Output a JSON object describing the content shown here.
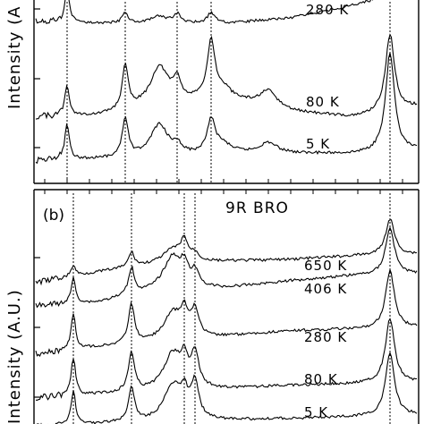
{
  "chart_data": [
    {
      "type": "line",
      "panel": "a",
      "panel_label": "",
      "title": "",
      "ylabel": "Intensity (A",
      "xlabel": "",
      "peak_positions": [
        75,
        140,
        198,
        236,
        436
      ],
      "minor_peaks": [
        178
      ],
      "series": [
        {
          "name": "280 K",
          "label": "280 K",
          "baseline": 30,
          "bg": [
            6,
            4,
            3,
            4,
            10,
            24,
            34
          ],
          "peaks": [
            36,
            12,
            10,
            12,
            8,
            0,
            0,
            48
          ]
        },
        {
          "name": "80 K",
          "label": "80 K",
          "baseline": 135,
          "bg": [
            4,
            6,
            18,
            24,
            10,
            4,
            16
          ],
          "peaks": [
            34,
            48,
            22,
            64,
            42,
            10,
            18,
            86
          ]
        },
        {
          "name": "5 K",
          "label": "5 K",
          "baseline": 178,
          "bg": [
            -2,
            0,
            2,
            6,
            6,
            6,
            10
          ],
          "peaks": [
            40,
            44,
            10,
            36,
            36,
            10,
            12,
            110
          ]
        }
      ]
    },
    {
      "type": "line",
      "panel": "b",
      "panel_label": "(b)",
      "title": "9R BRO",
      "ylabel": "Intensity (A.U.)",
      "xlabel": "",
      "peak_positions": [
        82,
        147,
        206,
        218,
        436
      ],
      "minor_peaks": [
        193
      ],
      "series": [
        {
          "name": "650 K",
          "label": "650 K",
          "baseline": 316,
          "bg": [
            0,
            12,
            22,
            24,
            26,
            30,
            32
          ],
          "peaks": [
            12,
            16,
            22,
            8,
            14,
            0,
            0,
            40
          ]
        },
        {
          "name": "406 K",
          "label": "406 K",
          "baseline": 342,
          "bg": [
            0,
            4,
            18,
            20,
            28,
            34,
            36
          ],
          "peaks": [
            28,
            30,
            20,
            16,
            36,
            0,
            0,
            52
          ]
        },
        {
          "name": "280 K",
          "label": "280 K",
          "baseline": 396,
          "bg": [
            0,
            8,
            14,
            20,
            26,
            28,
            30
          ],
          "peaks": [
            40,
            44,
            26,
            30,
            30,
            0,
            0,
            64
          ]
        },
        {
          "name": "80 K",
          "label": "80 K",
          "baseline": 445,
          "bg": [
            0,
            4,
            8,
            10,
            14,
            16,
            18
          ],
          "peaks": [
            42,
            44,
            26,
            38,
            40,
            0,
            0,
            72
          ]
        },
        {
          "name": "5 K",
          "label": "5 K",
          "baseline": 478,
          "bg": [
            0,
            4,
            6,
            8,
            10,
            12,
            14
          ],
          "peaks": [
            38,
            40,
            24,
            40,
            40,
            0,
            0,
            70
          ]
        }
      ]
    }
  ]
}
